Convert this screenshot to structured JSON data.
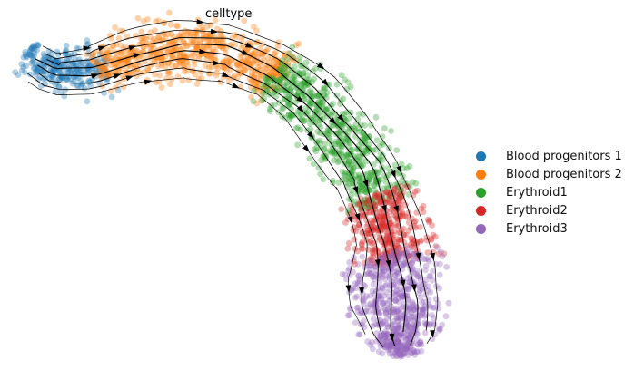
{
  "chart_data": {
    "type": "scatter",
    "title": "celltype",
    "xlabel": "",
    "ylabel": "",
    "grid": false,
    "axes_visible": false,
    "legend_position": "right",
    "overlay": "velocity streamlines with arrowheads",
    "series": [
      {
        "name": "Blood progenitors 1",
        "color": "#1f77b4"
      },
      {
        "name": "Blood progenitors 2",
        "color": "#ff7f0e"
      },
      {
        "name": "Erythroid1",
        "color": "#2ca02c"
      },
      {
        "name": "Erythroid2",
        "color": "#d62728"
      },
      {
        "name": "Erythroid3",
        "color": "#9467bd"
      }
    ]
  }
}
